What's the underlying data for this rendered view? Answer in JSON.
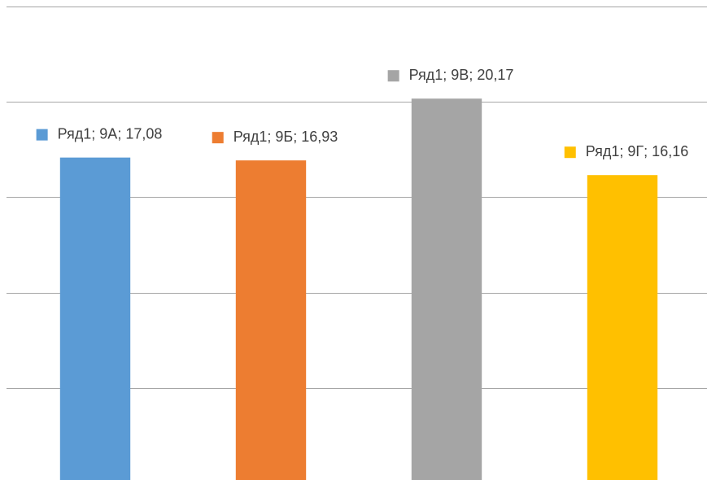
{
  "chart_data": {
    "type": "bar",
    "series_name": "Ряд1",
    "categories": [
      "9А",
      "9Б",
      "9В",
      "9Г"
    ],
    "values": [
      17.08,
      16.93,
      20.17,
      16.16
    ],
    "value_labels": [
      "Ряд1; 9А; 17,08",
      "Ряд1; 9Б; 16,93",
      "Ряд1; 9В; 20,17",
      "Ряд1; 9Г; 16,16"
    ],
    "colors": [
      "#5b9bd5",
      "#ed7d31",
      "#a5a5a5",
      "#ffc000"
    ],
    "ylim": [
      0,
      25
    ],
    "yticks": [
      5,
      10,
      15,
      20,
      25
    ],
    "grid": true
  }
}
